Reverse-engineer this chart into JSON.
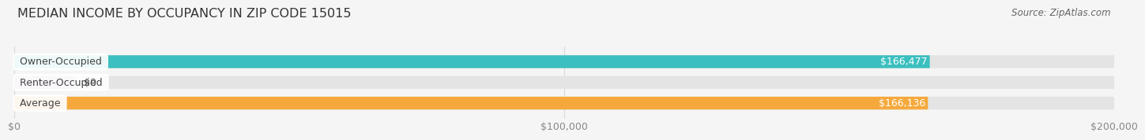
{
  "title": "MEDIAN INCOME BY OCCUPANCY IN ZIP CODE 15015",
  "source": "Source: ZipAtlas.com",
  "categories": [
    "Owner-Occupied",
    "Renter-Occupied",
    "Average"
  ],
  "values": [
    166477,
    0,
    166136
  ],
  "bar_colors": [
    "#3bbfbf",
    "#c8a0d4",
    "#f5a93d"
  ],
  "value_labels": [
    "$166,477",
    "$0",
    "$166,136"
  ],
  "xlim": [
    0,
    200000
  ],
  "xtick_labels": [
    "$0",
    "$100,000",
    "$200,000"
  ],
  "xtick_values": [
    0,
    100000,
    200000
  ],
  "title_fontsize": 11.5,
  "source_fontsize": 8.5,
  "label_fontsize": 9,
  "value_fontsize": 9,
  "bar_height": 0.62,
  "bg_color": "#f5f5f5",
  "bar_bg_color": "#e4e4e4",
  "grid_color": "#d8d8d8",
  "label_text_color": "#444444",
  "axis_text_color": "#888888"
}
